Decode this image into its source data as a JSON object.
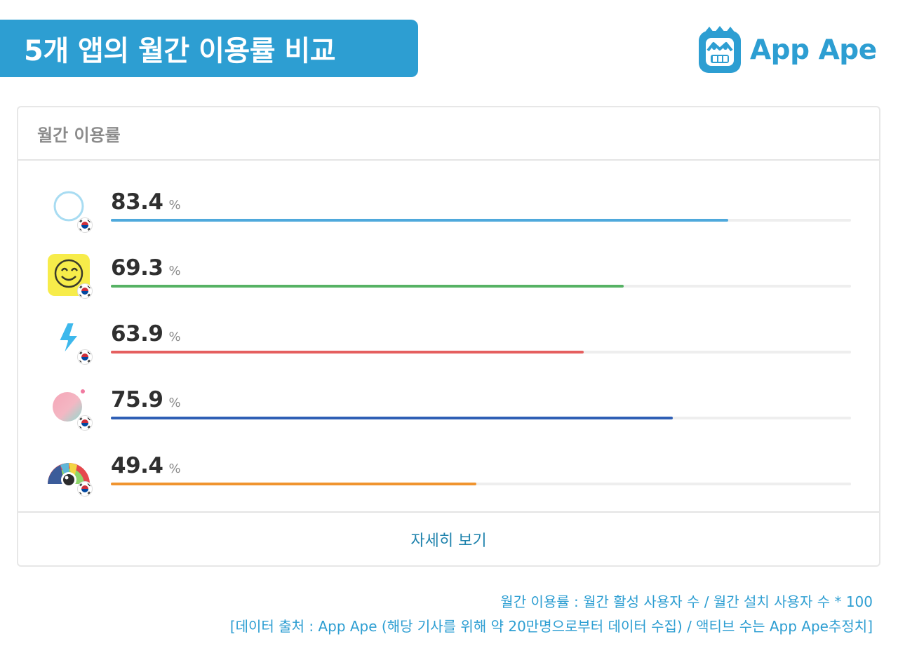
{
  "header": {
    "title": "5개 앱의 월간 이용률 비교"
  },
  "brand": {
    "name": "App Ape"
  },
  "card": {
    "title": "월간 이용률",
    "footer_link": "자세히 보기"
  },
  "chart_data": {
    "type": "bar",
    "orientation": "horizontal",
    "title": "월간 이용률",
    "unit": "%",
    "xlim": [
      0,
      100
    ],
    "grid": false,
    "bars": [
      {
        "value": "83.4",
        "fraction": 0.834,
        "color": "#4fa9dc",
        "icon": "round-white-circle-app-icon"
      },
      {
        "value": "69.3",
        "fraction": 0.693,
        "color": "#56b264",
        "icon": "yellow-smiley-app-icon"
      },
      {
        "value": "63.9",
        "fraction": 0.639,
        "color": "#e55f5f",
        "icon": "blue-lightning-app-icon"
      },
      {
        "value": "75.9",
        "fraction": 0.759,
        "color": "#2f5fb5",
        "icon": "pastel-gradient-circle-app-icon"
      },
      {
        "value": "49.4",
        "fraction": 0.494,
        "color": "#f0942f",
        "icon": "rainbow-camera-app-icon"
      }
    ]
  },
  "notes": {
    "line1": "월간 이용률 : 월간 활성 사용자 수 / 월간 설치 사용자 수 * 100",
    "line2": "[데이터 출처 : App Ape (해당 기사를 위해 약 20만명으로부터 데이터 수집) / 액티브 수는 App Ape추정치]"
  }
}
